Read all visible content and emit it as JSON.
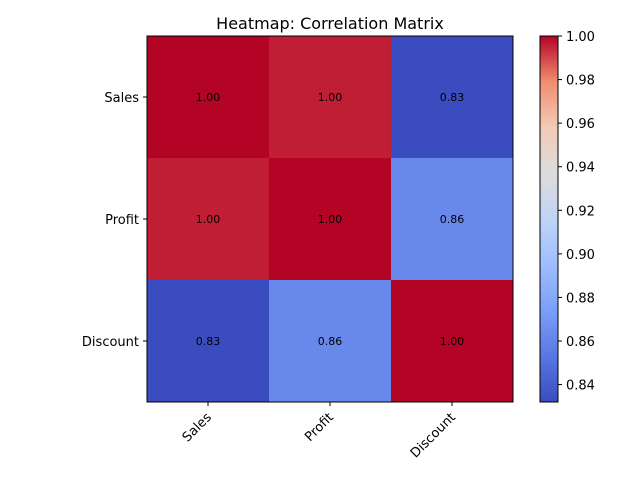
{
  "chart_data": {
    "type": "heatmap",
    "title": "Heatmap: Correlation Matrix",
    "xlabel": "",
    "ylabel": "",
    "x_categories": [
      "Sales",
      "Profit",
      "Discount"
    ],
    "y_categories": [
      "Sales",
      "Profit",
      "Discount"
    ],
    "values": [
      [
        1.0,
        0.996,
        0.832
      ],
      [
        0.996,
        1.0,
        0.862
      ],
      [
        0.832,
        0.862,
        1.0
      ]
    ],
    "value_labels": [
      [
        "1.00",
        "1.00",
        "0.83"
      ],
      [
        "1.00",
        "1.00",
        "0.86"
      ],
      [
        "0.83",
        "0.86",
        "1.00"
      ]
    ],
    "colormap": "coolwarm",
    "colorbar": {
      "min": 0.832,
      "max": 1.0,
      "ticks": [
        "0.84",
        "0.86",
        "0.88",
        "0.90",
        "0.92",
        "0.94",
        "0.96",
        "0.98",
        "1.00"
      ],
      "tick_values": [
        0.84,
        0.86,
        0.88,
        0.9,
        0.92,
        0.94,
        0.96,
        0.98,
        1.0
      ]
    },
    "grid": false
  }
}
